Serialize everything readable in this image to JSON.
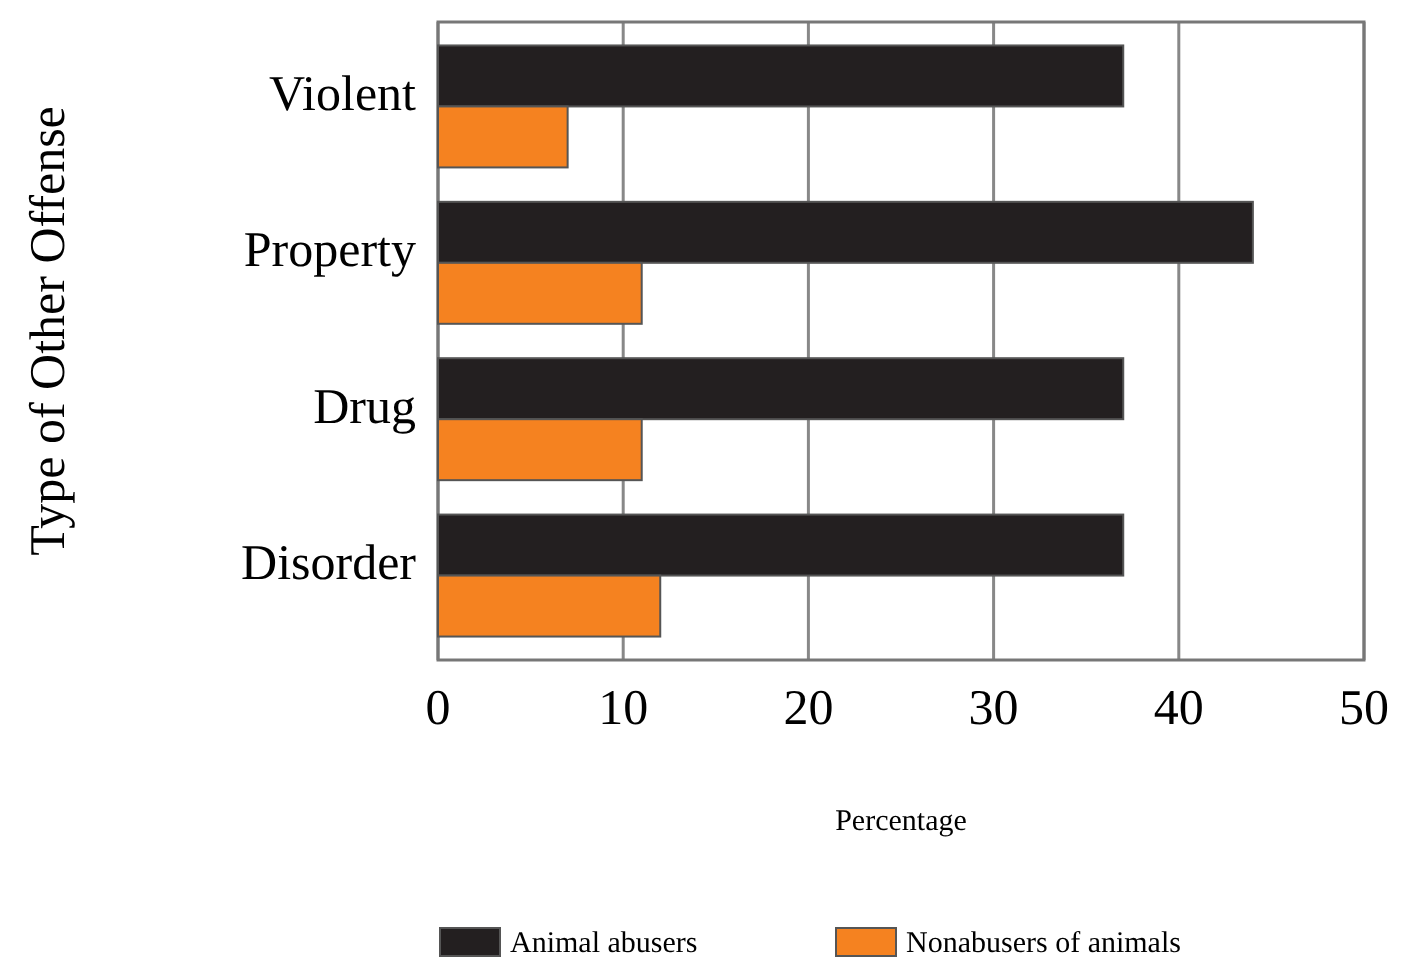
{
  "chart_data": {
    "type": "bar",
    "orientation": "horizontal",
    "xlabel": "Percentage",
    "ylabel": "Type of Other Offense",
    "categories": [
      "Violent",
      "Property",
      "Drug",
      "Disorder"
    ],
    "series": [
      {
        "name": "Animal abusers",
        "color": "#231f20",
        "values": [
          37,
          44,
          37,
          37
        ]
      },
      {
        "name": "Nonabusers of animals",
        "color": "#f58220",
        "values": [
          7,
          11,
          11,
          12
        ]
      }
    ],
    "xlim": [
      0,
      50
    ],
    "xticks": [
      0,
      10,
      20,
      30,
      40,
      50
    ],
    "grid": "x",
    "legend": "bottom"
  }
}
